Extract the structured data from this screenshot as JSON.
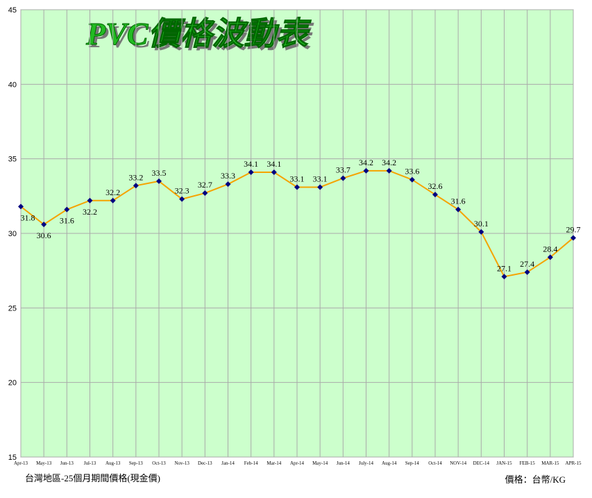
{
  "chart_data": {
    "type": "line",
    "title": "PVC價格波動表",
    "categories": [
      "Apr-13",
      "May-13",
      "Jun-13",
      "Jul-13",
      "Aug-13",
      "Sep-13",
      "Oct-13",
      "Nov-13",
      "Dec-13",
      "Jan-14",
      "Feb-14",
      "Mar-14",
      "Apr-14",
      "May-14",
      "Jun-14",
      "July-14",
      "Aug-14",
      "Sep-14",
      "Oct-14",
      "NOV-14",
      "DEC-14",
      "JAN-15",
      "FEB-15",
      "MAR-15",
      "APR-15"
    ],
    "series": [
      {
        "color": "#f5a300",
        "values": [
          31.8,
          30.6,
          31.6,
          32.2,
          32.2,
          33.2,
          33.5,
          32.3,
          32.7,
          33.3,
          34.1,
          34.1,
          33.1,
          33.1,
          33.7,
          34.2,
          34.2,
          33.6,
          32.6,
          31.6,
          30.1,
          27.1,
          27.4,
          28.4,
          29.7
        ]
      }
    ],
    "marker_color": "#000080",
    "ylim": [
      15,
      45
    ],
    "yticks": [
      15,
      20,
      25,
      30,
      35,
      40,
      45
    ],
    "grid": true,
    "footnote": "台灣地區-25個月期間價格(現金價)",
    "unit_note": "價格：台幣/KG"
  }
}
